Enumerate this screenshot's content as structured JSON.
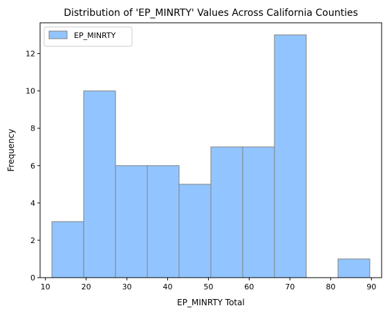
{
  "chart_data": {
    "type": "bar",
    "title": "Distribution of 'EP_MINRTY' Values Across California Counties",
    "xlabel": "EP_MINRTY Total",
    "ylabel": "Frequency",
    "bins": [
      {
        "start": 11.6,
        "end": 19.4,
        "count": 3
      },
      {
        "start": 19.4,
        "end": 27.2,
        "count": 10
      },
      {
        "start": 27.2,
        "end": 35.0,
        "count": 6
      },
      {
        "start": 35.0,
        "end": 42.8,
        "count": 6
      },
      {
        "start": 42.8,
        "end": 50.6,
        "count": 5
      },
      {
        "start": 50.6,
        "end": 58.4,
        "count": 7
      },
      {
        "start": 58.4,
        "end": 66.2,
        "count": 7
      },
      {
        "start": 66.2,
        "end": 74.0,
        "count": 13
      },
      {
        "start": 74.0,
        "end": 81.8,
        "count": 0
      },
      {
        "start": 81.8,
        "end": 89.6,
        "count": 1
      }
    ],
    "xlim": [
      8.7,
      92.5
    ],
    "ylim": [
      0,
      13.65
    ],
    "xticks": [
      10,
      20,
      30,
      40,
      50,
      60,
      70,
      80,
      90
    ],
    "yticks": [
      0,
      2,
      4,
      6,
      8,
      10,
      12
    ],
    "grid": false,
    "legend": {
      "placement": "top-left",
      "entries": [
        {
          "name": "EP_MINRTY",
          "color": "#92c5ff"
        }
      ]
    },
    "colors": {
      "bar_fill": "#92c5ff",
      "bar_edge": "#808080"
    }
  }
}
